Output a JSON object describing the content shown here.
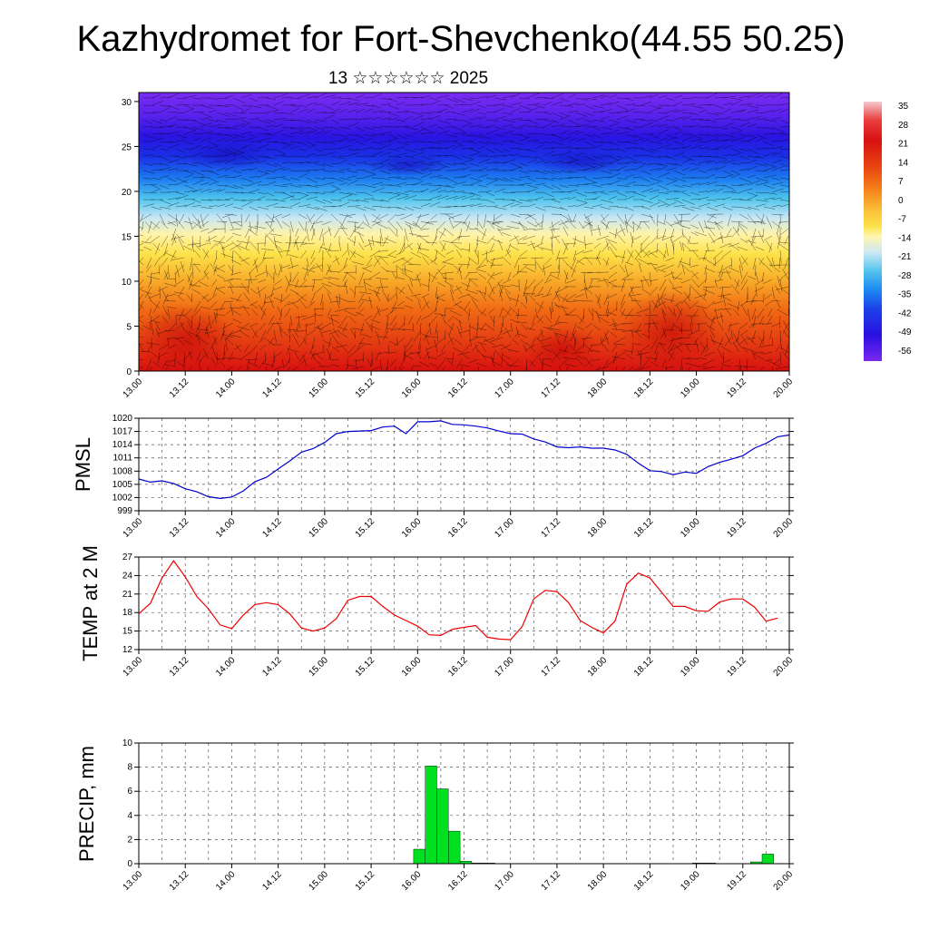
{
  "header": {
    "title": "Kazhydromet for Fort-Shevchenko(44.55 50.25)",
    "subtitle": "13 ☆☆☆☆☆☆ 2025"
  },
  "x_tick_labels": [
    "13.00",
    "13.12",
    "14.00",
    "14.12",
    "15.00",
    "15.12",
    "16.00",
    "16.12",
    "17.00",
    "17.12",
    "18.00",
    "18.12",
    "19.00",
    "19.12",
    "20.00"
  ],
  "chart_data": [
    {
      "type": "heatmap",
      "y_ticks": [
        0,
        5,
        10,
        15,
        20,
        25,
        30
      ],
      "ylim": [
        0,
        31
      ],
      "colorbar": {
        "labels": [
          "35",
          "28",
          "21",
          "14",
          "7",
          "0",
          "-7",
          "-14",
          "-21",
          "-28",
          "-35",
          "-42",
          "-49",
          "-56"
        ],
        "stops": [
          "#f4c9cf",
          "#e83030",
          "#d81010",
          "#e83a10",
          "#f06a10",
          "#f8a020",
          "#fde24a",
          "#fff6b0",
          "#cfe8f4",
          "#58c6ee",
          "#1e8ef0",
          "#1c40e8",
          "#2a10e0",
          "#7a28f0"
        ]
      },
      "profile_temperature": [
        {
          "height": 0,
          "value": 30
        },
        {
          "height": 3,
          "value": 28
        },
        {
          "height": 6,
          "value": 20
        },
        {
          "height": 9,
          "value": 12
        },
        {
          "height": 12,
          "value": 4
        },
        {
          "height": 14,
          "value": -2
        },
        {
          "height": 16,
          "value": -10
        },
        {
          "height": 18,
          "value": -22
        },
        {
          "height": 20,
          "value": -32
        },
        {
          "height": 22,
          "value": -45
        },
        {
          "height": 24,
          "value": -55
        },
        {
          "height": 26,
          "value": -58
        },
        {
          "height": 28,
          "value": -60
        },
        {
          "height": 31,
          "value": -62
        }
      ]
    },
    {
      "type": "line",
      "ylabel": "PMSL",
      "y_ticks": [
        999,
        1002,
        1005,
        1008,
        1011,
        1014,
        1017,
        1020
      ],
      "ylim": [
        999,
        1020
      ],
      "color": "#0000cc",
      "x": [
        0,
        3,
        6,
        9,
        12,
        15,
        18,
        21,
        24,
        27,
        30,
        33,
        36,
        39,
        42,
        45,
        48,
        51,
        54,
        57,
        60,
        63,
        66,
        69,
        72,
        75,
        78,
        81,
        84,
        87,
        90,
        93,
        96,
        99,
        102,
        105,
        108,
        111,
        114,
        117,
        120,
        123,
        126,
        129,
        132,
        135,
        138,
        141,
        144,
        147,
        150,
        153,
        156,
        159,
        162,
        165,
        168
      ],
      "values": [
        1006.2,
        1005.5,
        1005.8,
        1005.2,
        1004,
        1003.3,
        1002.2,
        1001.8,
        1002.1,
        1003.5,
        1005.6,
        1006.6,
        1008.5,
        1010.3,
        1012.3,
        1013.1,
        1014.5,
        1016.5,
        1017,
        1017.1,
        1017.2,
        1018,
        1018.2,
        1016.5,
        1019.2,
        1019.2,
        1019.4,
        1018.6,
        1018.5,
        1018.2,
        1017.8,
        1017.1,
        1016.5,
        1016.4,
        1015.3,
        1014.6,
        1013.5,
        1013.3,
        1013.5,
        1013.2,
        1013.2,
        1012.8,
        1011.8,
        1009.8,
        1008.1,
        1007.9,
        1007.2,
        1007.8,
        1007.5,
        1009,
        1010,
        1010.7,
        1011.5,
        1013.2,
        1014.3,
        1015.8,
        1016.2
      ]
    },
    {
      "type": "line",
      "ylabel": "TEMP at 2 M",
      "y_ticks": [
        12,
        15,
        18,
        21,
        24,
        27
      ],
      "ylim": [
        12,
        27
      ],
      "color": "#ee0000",
      "x": [
        0,
        3,
        6,
        9,
        12,
        15,
        18,
        21,
        24,
        27,
        30,
        33,
        36,
        39,
        42,
        45,
        48,
        51,
        54,
        57,
        60,
        63,
        66,
        69,
        72,
        75,
        78,
        81,
        84,
        87,
        90,
        93,
        96,
        99,
        102,
        105,
        108,
        111,
        114,
        117,
        120,
        123,
        126,
        129,
        132,
        135,
        138,
        141,
        144,
        147,
        150,
        153,
        156,
        159,
        162,
        165
      ],
      "values": [
        17.8,
        19.5,
        23.6,
        26.4,
        23.8,
        20.6,
        18.6,
        16,
        15.4,
        17.6,
        19.3,
        19.6,
        19.3,
        17.8,
        15.5,
        15,
        15.5,
        17,
        20,
        20.6,
        20.6,
        19,
        17.6,
        16.7,
        15.8,
        14.4,
        14.3,
        15.3,
        15.6,
        15.9,
        14,
        13.7,
        13.6,
        15.7,
        20.2,
        21.6,
        21.4,
        19.6,
        16.7,
        15.6,
        14.7,
        16.6,
        22.6,
        24.4,
        23.6,
        21.3,
        19,
        19,
        18.3,
        18.2,
        19.7,
        20.2,
        20.2,
        18.9,
        16.6,
        17.1
      ]
    },
    {
      "type": "bar",
      "ylabel": "PRECIP, mm",
      "y_ticks": [
        0,
        2,
        4,
        6,
        8,
        10
      ],
      "ylim": [
        0,
        10
      ],
      "color": "#00e020",
      "x": [
        72,
        75,
        78,
        81,
        84,
        87,
        90,
        144,
        147,
        159,
        162
      ],
      "values": [
        1.2,
        8.1,
        6.2,
        2.7,
        0.2,
        0.05,
        0.05,
        0.05,
        0.05,
        0.15,
        0.8
      ]
    }
  ]
}
